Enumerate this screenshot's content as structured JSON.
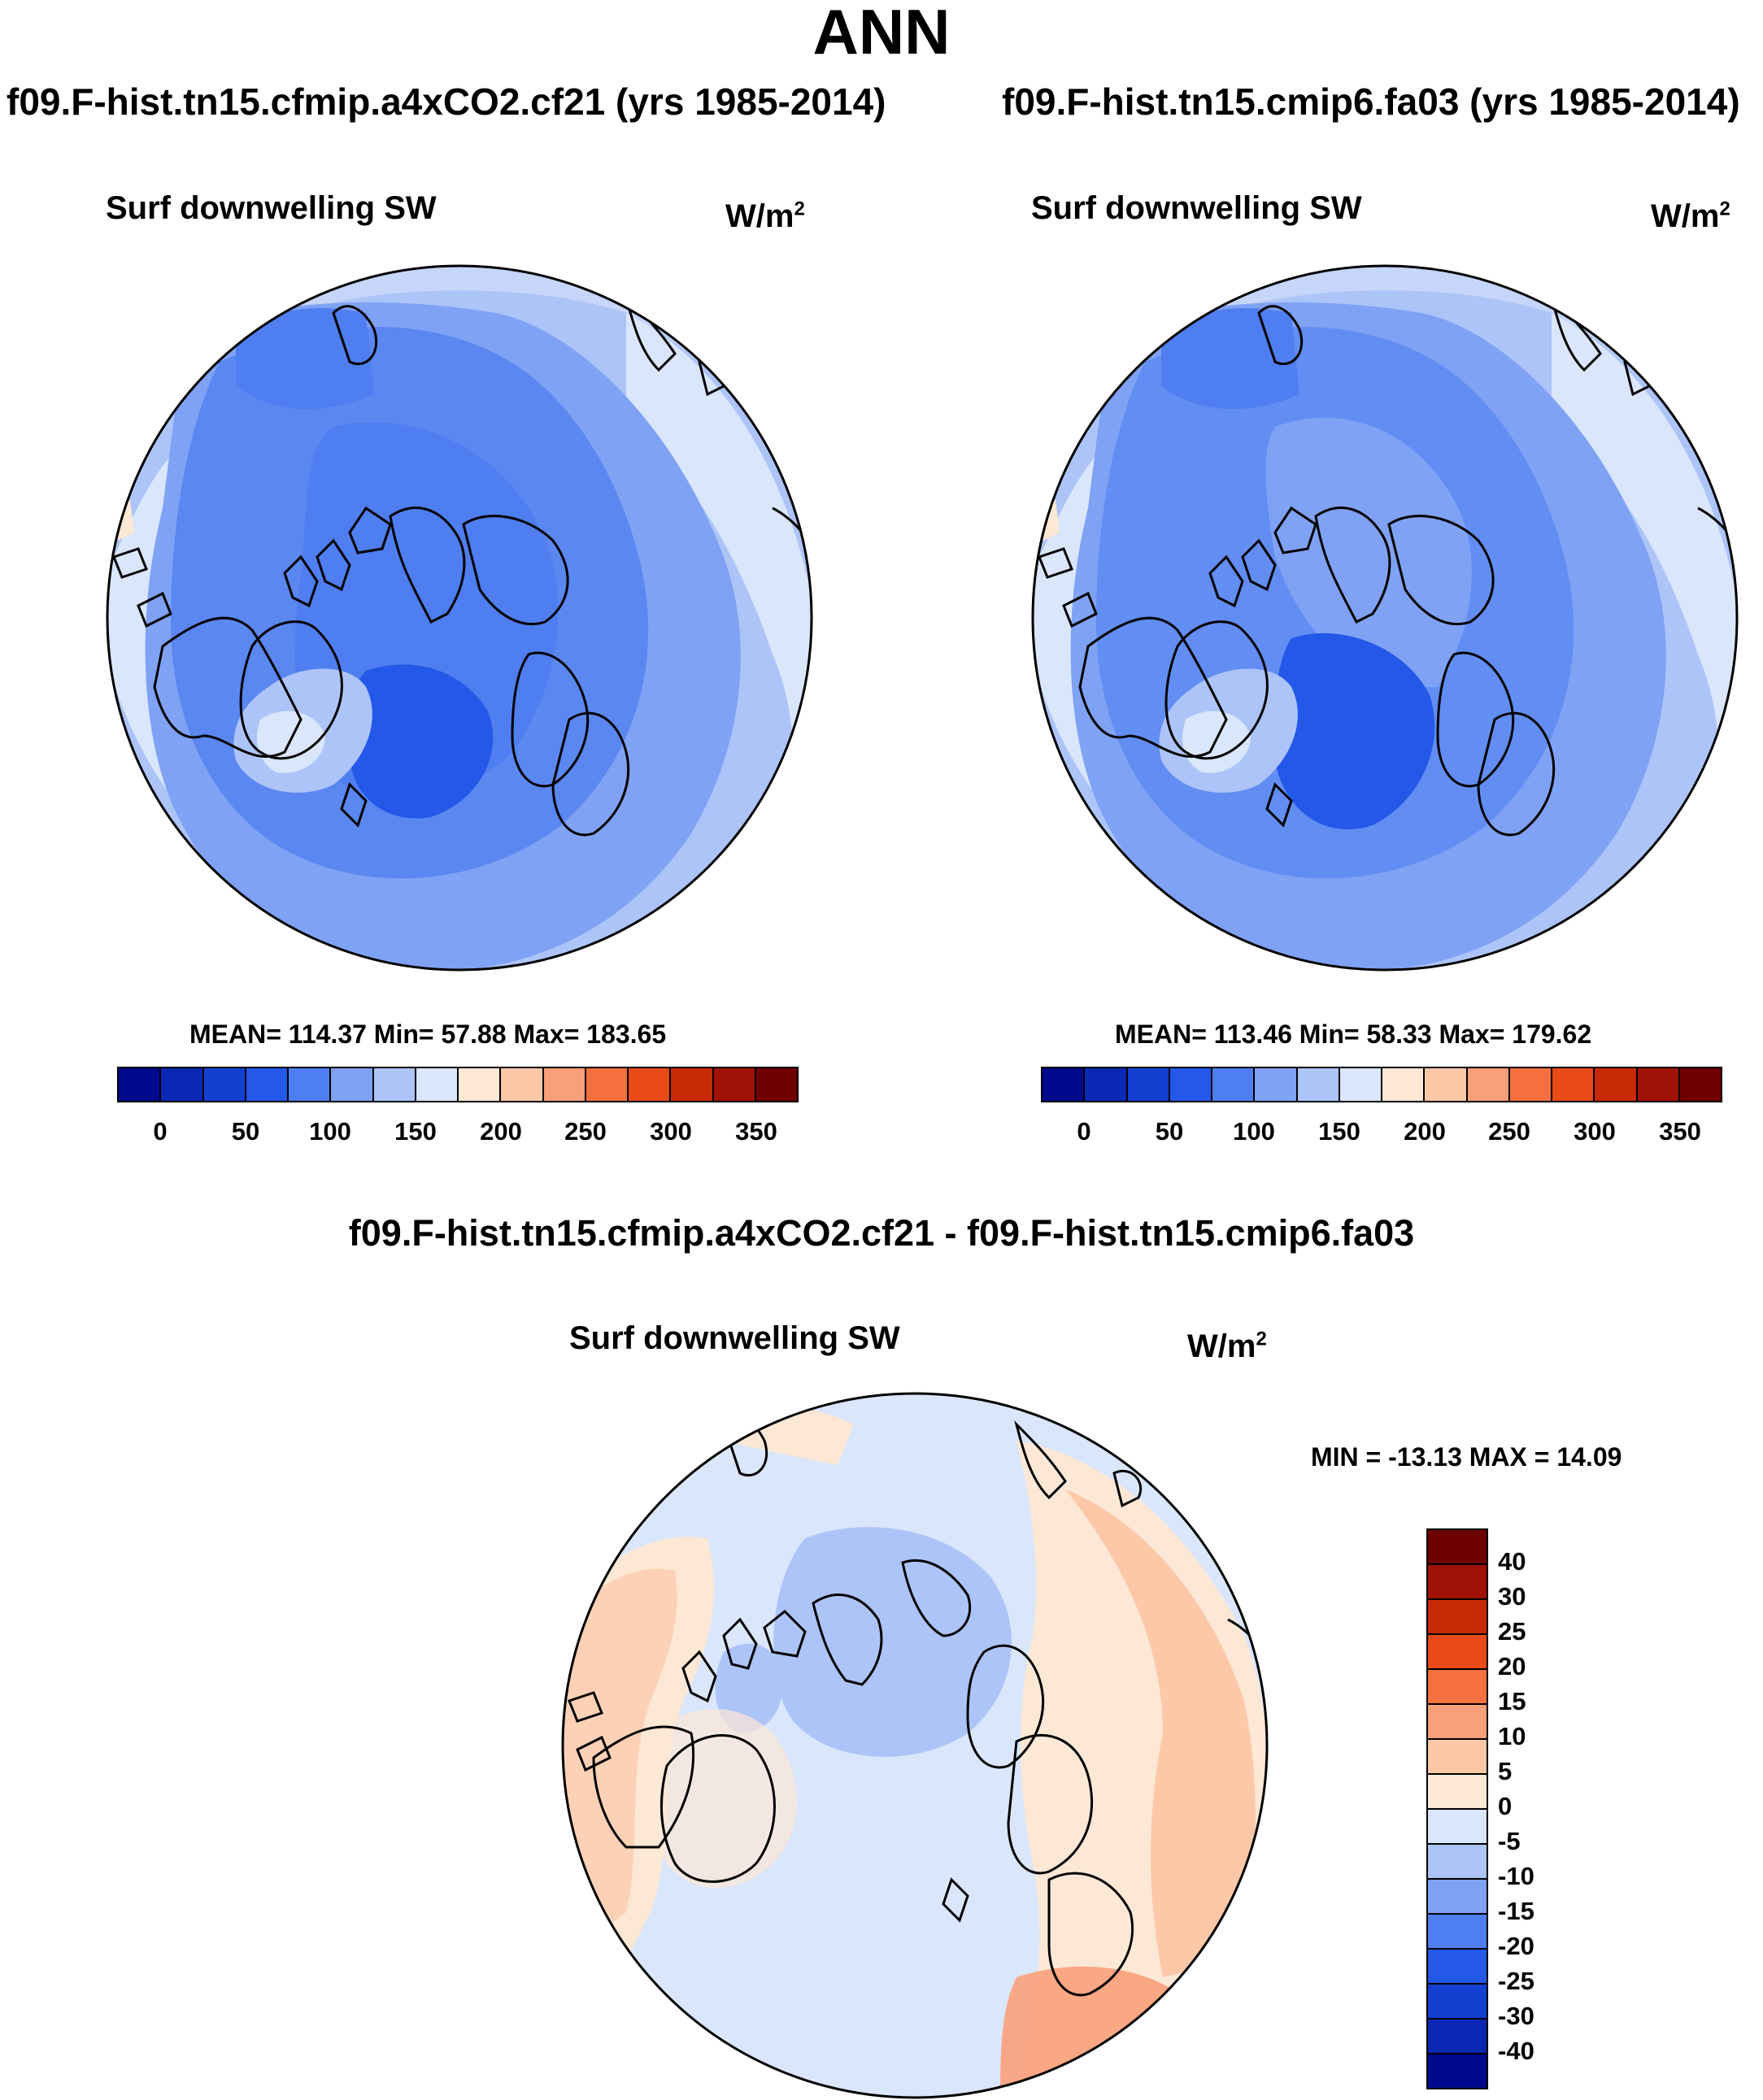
{
  "title": "ANN",
  "colors": {
    "abs_scale": [
      "#000a8c",
      "#0a28b4",
      "#1440d2",
      "#2358e8",
      "#4f7ef0",
      "#7fa2f4",
      "#adc4f8",
      "#d9e6fb",
      "#fde8d6",
      "#fcc8a8",
      "#f9a07a",
      "#f4703e",
      "#e84a18",
      "#c82a08",
      "#a01206",
      "#6e0000"
    ],
    "diff_scale": [
      "#6e0000",
      "#a01206",
      "#c82a08",
      "#e84a18",
      "#f4703e",
      "#f9a07a",
      "#fcc8a8",
      "#fde8d6",
      "#d9e6fb",
      "#adc4f8",
      "#7fa2f4",
      "#4f7ef0",
      "#2358e8",
      "#1440d2",
      "#0a28b4",
      "#000a8c"
    ]
  },
  "panels": {
    "left": {
      "case_title": "f09.F-hist.tn15.cfmip.a4xCO2.cf21 (yrs 1985-2014)",
      "variable": "Surf downwelling SW",
      "units_base": "W/m",
      "units_exp": "2",
      "stats": "MEAN= 114.37  Min=  57.88  Max= 183.65",
      "colorbar_labels": [
        "0",
        "50",
        "100",
        "150",
        "200",
        "250",
        "300",
        "350"
      ]
    },
    "right": {
      "case_title": "f09.F-hist.tn15.cmip6.fa03 (yrs 1985-2014)",
      "variable": "Surf downwelling SW",
      "units_base": "W/m",
      "units_exp": "2",
      "stats": "MEAN= 113.46  Min=  58.33  Max= 179.62",
      "colorbar_labels": [
        "0",
        "50",
        "100",
        "150",
        "200",
        "250",
        "300",
        "350"
      ]
    },
    "diff": {
      "case_title": "f09.F-hist.tn15.cfmip.a4xCO2.cf21 - f09.F-hist.tn15.cmip6.fa03",
      "variable": "Surf downwelling SW",
      "units_base": "W/m",
      "units_exp": "2",
      "stats": "MIN = -13.13 MAX =  14.09",
      "colorbar_labels": [
        "40",
        "30",
        "25",
        "20",
        "15",
        "10",
        "5",
        "0",
        "-5",
        "-10",
        "-15",
        "-20",
        "-25",
        "-30",
        "-40"
      ]
    }
  }
}
